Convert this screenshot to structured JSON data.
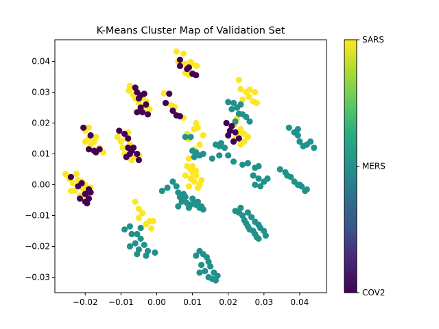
{
  "chart_data": {
    "type": "scatter",
    "title": "K-Means Cluster Map of Validation Set",
    "xlabel": "",
    "ylabel": "",
    "xlim": [
      -0.0285,
      0.0475
    ],
    "ylim": [
      -0.035,
      0.047
    ],
    "xticks": [
      -0.02,
      -0.01,
      0.0,
      0.01,
      0.02,
      0.03,
      0.04
    ],
    "xtick_labels": [
      "−0.02",
      "−0.01",
      "0.00",
      "0.01",
      "0.02",
      "0.03",
      "0.04"
    ],
    "yticks": [
      -0.03,
      -0.02,
      -0.01,
      0.0,
      0.01,
      0.02,
      0.03,
      0.04
    ],
    "ytick_labels": [
      "−0.03",
      "−0.02",
      "−0.01",
      "0.00",
      "0.01",
      "0.02",
      "0.03",
      "0.04"
    ],
    "grid": false,
    "colormap": "viridis",
    "colorbar": {
      "labels": [
        "SARS",
        "MERS",
        "COV2"
      ],
      "positions": [
        1.0,
        0.5,
        0.0
      ]
    },
    "classes": [
      {
        "name": "SARS",
        "color": "#fde725"
      },
      {
        "name": "MERS",
        "color": "#21918c"
      },
      {
        "name": "COV2",
        "color": "#440154"
      }
    ],
    "series": [
      {
        "name": "SARS",
        "points": [
          [
            0.0055,
            0.0432
          ],
          [
            0.0075,
            0.0425
          ],
          [
            0.006,
            0.04
          ],
          [
            0.008,
            0.0392
          ],
          [
            0.0095,
            0.0398
          ],
          [
            0.01,
            0.039
          ],
          [
            0.0112,
            0.0385
          ],
          [
            0.008,
            0.0362
          ],
          [
            0.009,
            0.0356
          ],
          [
            -0.0075,
            0.032
          ],
          [
            -0.0078,
            0.0305
          ],
          [
            -0.0065,
            0.029
          ],
          [
            -0.006,
            0.028
          ],
          [
            -0.005,
            0.0265
          ],
          [
            -0.004,
            0.028
          ],
          [
            -0.003,
            0.027
          ],
          [
            -0.0035,
            0.0255
          ],
          [
            -0.002,
            0.0245
          ],
          [
            -0.0025,
            0.0232
          ],
          [
            -0.006,
            0.031
          ],
          [
            0.002,
            0.0296
          ],
          [
            0.004,
            0.0258
          ],
          [
            0.005,
            0.0252
          ],
          [
            0.0075,
            0.0217
          ],
          [
            0.011,
            0.02
          ],
          [
            0.0115,
            0.0185
          ],
          [
            0.0105,
            0.018
          ],
          [
            0.0085,
            0.0165
          ],
          [
            0.009,
            0.0148
          ],
          [
            0.013,
            0.016
          ],
          [
            0.012,
            0.013
          ],
          [
            0.0105,
            0.0115
          ],
          [
            0.023,
            0.034
          ],
          [
            0.0235,
            0.031
          ],
          [
            0.025,
            0.03
          ],
          [
            0.026,
            0.0308
          ],
          [
            0.0275,
            0.03
          ],
          [
            0.0258,
            0.0285
          ],
          [
            0.027,
            0.027
          ],
          [
            0.028,
            0.0265
          ],
          [
            0.024,
            0.0276
          ],
          [
            0.0218,
            0.0195
          ],
          [
            0.0225,
            0.0215
          ],
          [
            0.0235,
            0.018
          ],
          [
            0.0245,
            0.0165
          ],
          [
            0.023,
            0.0165
          ],
          [
            0.0255,
            0.0155
          ],
          [
            0.022,
            0.0148
          ],
          [
            0.0245,
            0.014
          ],
          [
            0.0235,
            0.013
          ],
          [
            -0.02,
            0.0175
          ],
          [
            -0.019,
            0.015
          ],
          [
            -0.0175,
            0.014
          ],
          [
            -0.0185,
            0.013
          ],
          [
            -0.02,
            0.014
          ],
          [
            -0.019,
            0.0185
          ],
          [
            -0.016,
            0.012
          ],
          [
            -0.015,
            0.0105
          ],
          [
            -0.017,
            0.0155
          ],
          [
            -0.011,
            0.0155
          ],
          [
            -0.01,
            0.014
          ],
          [
            -0.0095,
            0.012
          ],
          [
            -0.0085,
            0.015
          ],
          [
            -0.008,
            0.017
          ],
          [
            -0.009,
            0.01
          ],
          [
            -0.007,
            0.008
          ],
          [
            -0.006,
            0.009
          ],
          [
            -0.005,
            0.0095
          ],
          [
            -0.0075,
            0.013
          ],
          [
            0.009,
            0.0085
          ],
          [
            0.0085,
            0.006
          ],
          [
            0.0095,
            0.005
          ],
          [
            0.01,
            0.004
          ],
          [
            0.011,
            0.003
          ],
          [
            0.0105,
            0.001
          ],
          [
            0.012,
            0.0
          ],
          [
            0.0115,
            -0.001
          ],
          [
            0.0095,
            0.002
          ],
          [
            0.0125,
            0.0015
          ],
          [
            0.01,
            0.006
          ],
          [
            0.011,
            0.0045
          ],
          [
            0.008,
            0.003
          ],
          [
            0.009,
            -0.0005
          ],
          [
            -0.0255,
            0.0035
          ],
          [
            -0.0245,
            0.002
          ],
          [
            -0.0235,
            0.0005
          ],
          [
            -0.0225,
            0.0035
          ],
          [
            -0.022,
            0.0015
          ],
          [
            -0.023,
            -0.002
          ],
          [
            -0.0215,
            -0.0035
          ],
          [
            -0.0205,
            -0.0015
          ],
          [
            -0.02,
            0.0
          ],
          [
            -0.0195,
            -0.004
          ],
          [
            -0.0185,
            -0.001
          ],
          [
            -0.021,
            0.001
          ],
          [
            -0.024,
            -0.002
          ],
          [
            -0.006,
            -0.0055
          ],
          [
            -0.005,
            -0.0078
          ],
          [
            -0.004,
            -0.0092
          ],
          [
            -0.005,
            -0.0108
          ],
          [
            -0.003,
            -0.0128
          ],
          [
            -0.002,
            -0.0118
          ],
          [
            -0.0015,
            -0.0142
          ],
          [
            -0.001,
            -0.0118
          ]
        ]
      },
      {
        "name": "MERS",
        "points": [
          [
            0.02,
            0.0268
          ],
          [
            0.0215,
            0.0265
          ],
          [
            0.0235,
            0.026
          ],
          [
            0.0225,
            0.025
          ],
          [
            0.021,
            0.0245
          ],
          [
            0.023,
            0.023
          ],
          [
            0.024,
            0.0228
          ],
          [
            0.025,
            0.022
          ],
          [
            0.022,
            0.0205
          ],
          [
            0.026,
            0.0205
          ],
          [
            0.008,
            0.0155
          ],
          [
            0.0095,
            0.0155
          ],
          [
            0.01,
            0.011
          ],
          [
            0.011,
            0.0105
          ],
          [
            0.012,
            0.0095
          ],
          [
            0.0105,
            0.009
          ],
          [
            0.013,
            0.01
          ],
          [
            0.0155,
            0.0085
          ],
          [
            0.0165,
            0.013
          ],
          [
            0.0175,
            0.0125
          ],
          [
            0.018,
            0.0135
          ],
          [
            0.019,
            0.012
          ],
          [
            0.0175,
            0.0095
          ],
          [
            0.02,
            0.0095
          ],
          [
            0.0215,
            0.0075
          ],
          [
            0.024,
            0.0065
          ],
          [
            0.0255,
            0.007
          ],
          [
            0.0275,
            0.0055
          ],
          [
            0.0285,
            0.006
          ],
          [
            0.027,
            0.003
          ],
          [
            0.0285,
            0.002
          ],
          [
            0.03,
            0.001
          ],
          [
            0.0275,
            0.0
          ],
          [
            0.029,
            -0.0005
          ],
          [
            0.031,
            0.002
          ],
          [
            0.0345,
            0.005
          ],
          [
            0.036,
            0.004
          ],
          [
            0.0365,
            0.003
          ],
          [
            0.0375,
            0.0025
          ],
          [
            0.0385,
            0.001
          ],
          [
            0.0395,
            0.0
          ],
          [
            0.0405,
            -0.0005
          ],
          [
            0.0415,
            -0.002
          ],
          [
            0.04,
            0.0
          ],
          [
            0.042,
            -0.0015
          ],
          [
            0.037,
            0.0185
          ],
          [
            0.0385,
            0.017
          ],
          [
            0.0395,
            0.016
          ],
          [
            0.04,
            0.014
          ],
          [
            0.041,
            0.0125
          ],
          [
            0.042,
            0.013
          ],
          [
            0.043,
            0.014
          ],
          [
            0.044,
            0.012
          ],
          [
            0.0395,
            0.018
          ],
          [
            0.0045,
            0.001
          ],
          [
            0.0055,
            -0.0005
          ],
          [
            0.006,
            -0.0025
          ],
          [
            0.0065,
            -0.004
          ],
          [
            0.007,
            -0.0055
          ],
          [
            0.0075,
            -0.005
          ],
          [
            0.0085,
            -0.006
          ],
          [
            0.009,
            -0.0075
          ],
          [
            0.0095,
            -0.0065
          ],
          [
            0.01,
            -0.0045
          ],
          [
            0.0105,
            -0.006
          ],
          [
            0.0115,
            -0.0055
          ],
          [
            0.012,
            -0.0075
          ],
          [
            0.0125,
            -0.007
          ],
          [
            0.013,
            -0.008
          ],
          [
            0.008,
            -0.004
          ],
          [
            0.0075,
            -0.003
          ],
          [
            0.011,
            -0.0065
          ],
          [
            0.006,
            -0.007
          ],
          [
            0.003,
            -0.001
          ],
          [
            0.0015,
            -0.002
          ],
          [
            0.0235,
            -0.0075
          ],
          [
            0.023,
            -0.009
          ],
          [
            0.024,
            -0.01
          ],
          [
            0.0245,
            -0.0115
          ],
          [
            0.025,
            -0.0125
          ],
          [
            0.0255,
            -0.0135
          ],
          [
            0.026,
            -0.0145
          ],
          [
            0.027,
            -0.015
          ],
          [
            0.0275,
            -0.016
          ],
          [
            0.028,
            -0.017
          ],
          [
            0.0285,
            -0.013
          ],
          [
            0.029,
            -0.014
          ],
          [
            0.03,
            -0.015
          ],
          [
            0.0265,
            -0.0105
          ],
          [
            0.0275,
            -0.012
          ],
          [
            0.0285,
            -0.0175
          ],
          [
            0.0305,
            -0.0165
          ],
          [
            0.022,
            -0.0085
          ],
          [
            0.0255,
            -0.009
          ],
          [
            -0.009,
            -0.0145
          ],
          [
            -0.0075,
            -0.0135
          ],
          [
            -0.007,
            -0.016
          ],
          [
            -0.0055,
            -0.016
          ],
          [
            -0.0045,
            -0.0175
          ],
          [
            -0.006,
            -0.019
          ],
          [
            -0.0075,
            -0.02
          ],
          [
            -0.005,
            -0.021
          ],
          [
            -0.0035,
            -0.0195
          ],
          [
            -0.0025,
            -0.0215
          ],
          [
            -0.0005,
            -0.022
          ],
          [
            -0.003,
            -0.023
          ],
          [
            -0.0055,
            -0.0225
          ],
          [
            -0.0045,
            -0.014
          ],
          [
            0.011,
            -0.023
          ],
          [
            0.012,
            -0.0215
          ],
          [
            0.013,
            -0.0225
          ],
          [
            0.014,
            -0.0235
          ],
          [
            0.0145,
            -0.025
          ],
          [
            0.0125,
            -0.026
          ],
          [
            0.015,
            -0.0265
          ],
          [
            0.0135,
            -0.028
          ],
          [
            0.016,
            -0.0285
          ],
          [
            0.0145,
            -0.03
          ],
          [
            0.0165,
            -0.031
          ],
          [
            0.017,
            -0.0295
          ],
          [
            0.0155,
            -0.0305
          ],
          [
            0.012,
            -0.0285
          ]
        ]
      },
      {
        "name": "COV2",
        "points": [
          [
            0.0065,
            0.0385
          ],
          [
            0.0085,
            0.0375
          ],
          [
            0.01,
            0.036
          ],
          [
            0.011,
            0.0355
          ],
          [
            0.009,
            0.038
          ],
          [
            0.0065,
            0.0405
          ],
          [
            -0.006,
            0.0315
          ],
          [
            -0.0055,
            0.03
          ],
          [
            -0.0045,
            0.029
          ],
          [
            -0.0035,
            0.0295
          ],
          [
            -0.005,
            0.028
          ],
          [
            -0.003,
            0.026
          ],
          [
            -0.0045,
            0.025
          ],
          [
            -0.004,
            0.0235
          ],
          [
            -0.0055,
            0.0235
          ],
          [
            -0.0025,
            0.0228
          ],
          [
            0.0025,
            0.0265
          ],
          [
            0.0035,
            0.0295
          ],
          [
            0.0045,
            0.024
          ],
          [
            0.0055,
            0.0225
          ],
          [
            0.0065,
            0.0222
          ],
          [
            0.0195,
            0.02
          ],
          [
            0.021,
            0.019
          ],
          [
            0.0205,
            0.0175
          ],
          [
            0.022,
            0.017
          ],
          [
            0.0215,
            0.014
          ],
          [
            0.023,
            0.015
          ],
          [
            0.02,
            0.016
          ],
          [
            -0.0205,
            0.0185
          ],
          [
            -0.0185,
            0.016
          ],
          [
            -0.0175,
            0.011
          ],
          [
            -0.016,
            0.0115
          ],
          [
            -0.017,
            0.0105
          ],
          [
            -0.019,
            0.0115
          ],
          [
            -0.0105,
            0.0175
          ],
          [
            -0.009,
            0.0165
          ],
          [
            -0.008,
            0.015
          ],
          [
            -0.008,
            0.012
          ],
          [
            -0.007,
            0.011
          ],
          [
            -0.0085,
            0.009
          ],
          [
            -0.0075,
            0.01
          ],
          [
            -0.0065,
            0.012
          ],
          [
            -0.0055,
            0.01
          ],
          [
            -0.005,
            0.008
          ],
          [
            -0.024,
            0.0025
          ],
          [
            -0.022,
            -0.0005
          ],
          [
            -0.021,
            0.0005
          ],
          [
            -0.02,
            -0.003
          ],
          [
            -0.0215,
            -0.0045
          ],
          [
            -0.02,
            -0.0055
          ],
          [
            -0.0185,
            -0.0025
          ],
          [
            -0.019,
            -0.0015
          ],
          [
            -0.0195,
            -0.006
          ],
          [
            -0.019,
            -0.0045
          ],
          [
            -0.02,
            -0.003
          ]
        ]
      }
    ]
  }
}
